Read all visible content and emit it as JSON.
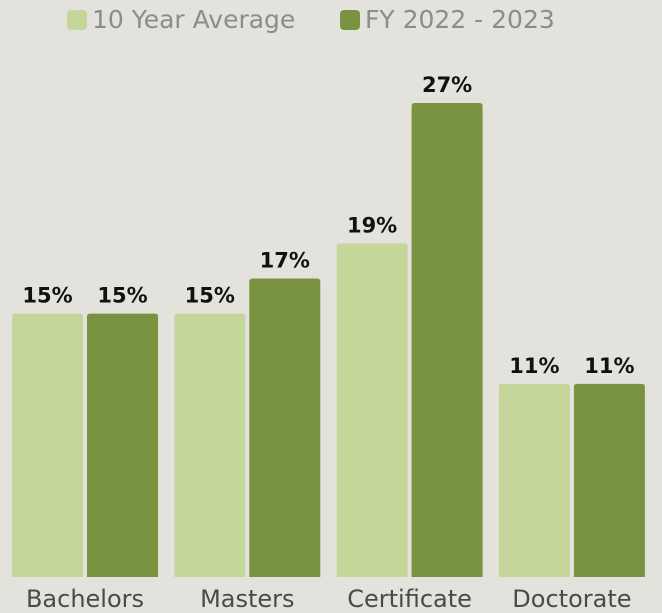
{
  "chart_data": {
    "type": "bar",
    "categories": [
      "Bachelors",
      "Masters",
      "Certificate",
      "Doctorate"
    ],
    "series": [
      {
        "name": "10 Year Average",
        "color": "#c5d69b",
        "values": [
          15,
          15,
          19,
          11
        ],
        "value_labels": [
          "15%",
          "15%",
          "19%",
          "11%"
        ]
      },
      {
        "name": "FY 2022 - 2023",
        "color": "#7a9340",
        "values": [
          15,
          17,
          27,
          11
        ],
        "value_labels": [
          "15%",
          "17%",
          "27%",
          "11%"
        ]
      }
    ]
  }
}
